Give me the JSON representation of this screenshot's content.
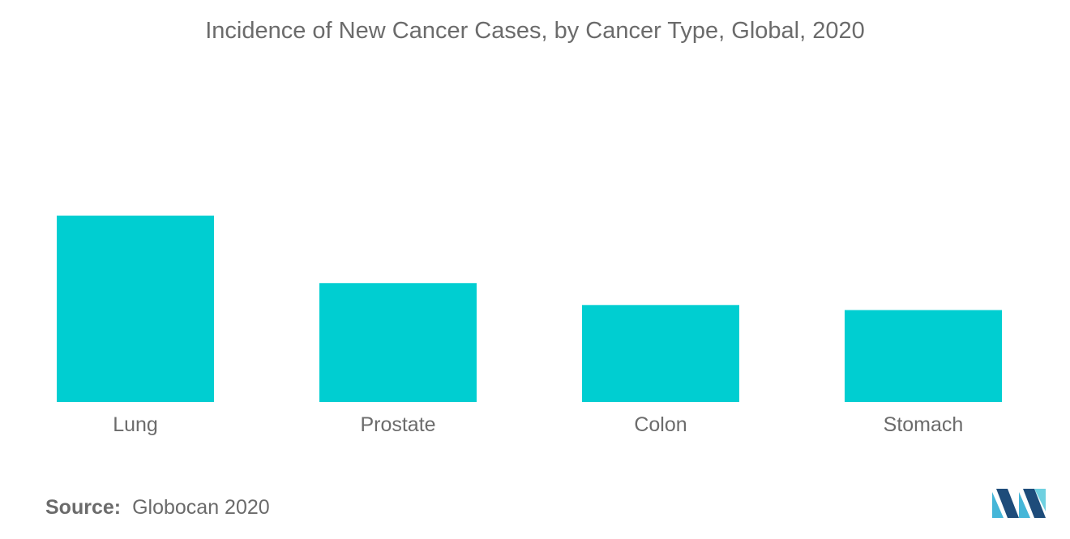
{
  "chart_data": {
    "type": "bar",
    "title": "Incidence of New Cancer Cases, by Cancer Type, Global, 2020",
    "categories": [
      "Lung",
      "Prostate",
      "Colon",
      "Stomach"
    ],
    "values": [
      2.21,
      1.41,
      1.15,
      1.09
    ],
    "xlabel": "",
    "ylabel": "",
    "ylim": [
      0,
      2.21
    ],
    "grid": false,
    "legend": "none",
    "bar_color": "#00CED1"
  },
  "source": {
    "label": "Source:",
    "text": "Globocan 2020"
  },
  "logo": {
    "icon": "mordor-intelligence-logo",
    "colors": [
      "#1e4c7a",
      "#45b6d8",
      "#6fd0e0"
    ]
  }
}
